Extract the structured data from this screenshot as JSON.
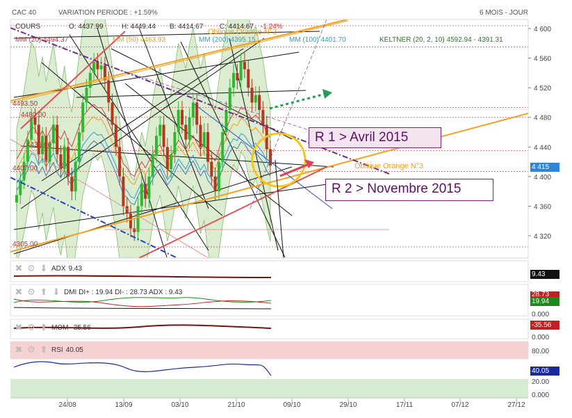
{
  "header": {
    "index": "CAC 40",
    "variation": "VARIATION PERIODE : +1.59%",
    "period": "6 MOIS - JOUR",
    "cours_label": "COURS",
    "open": "O: 4437.99",
    "high": "H: 4449.44",
    "low": "B: 4414.67",
    "close": "C: 4414.67",
    "change": "-1.24%"
  },
  "legend": {
    "mm20": "MM (20) 4494.37",
    "mm50": "MM (50) 4463.93",
    "mm200": "MM (200) 4395.15",
    "mm100": "MM (100) 4401.70",
    "keltner": "KELTNER (20, 2, 10)  4592.94 - 4391.31",
    "oblique2": "Oblique Orange N°2",
    "oblique3": "Oblique Orange N°3"
  },
  "annotations": {
    "r1": "R 1 > Avril 2015",
    "r2": "R 2 > Novembre 2015"
  },
  "price_labels": {
    "l4493": "4493.50",
    "l4480": "4480.00",
    "l4435": "4435.00",
    "l4407": "4407.00",
    "l4305": "4305.00"
  },
  "last_price": "4 415",
  "yaxis_ticks": [
    "4 600",
    "4 560",
    "4 520",
    "4 480",
    "4 440",
    "4 400",
    "4 360",
    "4 320"
  ],
  "xaxis_ticks": [
    "24/08",
    "13/09",
    "03/10",
    "21/10",
    "09/10",
    "29/10",
    "17/11",
    "07/12",
    "27/12"
  ],
  "panels": {
    "adx": {
      "label": "ADX",
      "value": "9.43",
      "box": "9.43"
    },
    "dmi": {
      "label": "DMI DI+ : 19.94 DI- : 28.73 ADX : 9.43",
      "box_red": "28.73",
      "box_green": "19.94",
      "zero": "0.000"
    },
    "mom": {
      "label": "MOM",
      "value": "-35.56",
      "box": "-35.56",
      "zero": "0.000"
    },
    "rsi": {
      "label": "RSI",
      "value": "40.05",
      "box": "40.05",
      "t80": "80.00",
      "t20": "20.00",
      "t0": "0.000"
    }
  },
  "colors": {
    "up": "#2fb82f",
    "down": "#b03a1e",
    "orange": "#f5a020",
    "red_ma": "#e55050",
    "purple": "#6a2a8a",
    "green_arrow": "#2a9a5a",
    "blue_dash": "#2040c0",
    "circle": "#f5c518",
    "keltner_fill": "#cfe6c2"
  },
  "chart_data": {
    "type": "candlestick",
    "title": "CAC 40",
    "subtitle": "6 MOIS - JOUR",
    "ylim": [
      4290,
      4625
    ],
    "x_ticks": [
      "24/08",
      "13/09",
      "03/10",
      "21/10",
      "09/10",
      "29/10",
      "17/11",
      "07/12",
      "27/12"
    ],
    "last_close": 4414.67,
    "ohlc_last": {
      "open": 4437.99,
      "high": 4449.44,
      "low": 4414.67,
      "close": 4414.67
    },
    "close_series": [
      4375,
      4395,
      4420,
      4450,
      4480,
      4470,
      4430,
      4455,
      4420,
      4445,
      4470,
      4430,
      4410,
      4440,
      4400,
      4380,
      4420,
      4460,
      4500,
      4520,
      4540,
      4555,
      4545,
      4550,
      4530,
      4500,
      4470,
      4440,
      4400,
      4360,
      4350,
      4330,
      4325,
      4360,
      4390,
      4370,
      4400,
      4430,
      4455,
      4470,
      4440,
      4410,
      4430,
      4460,
      4490,
      4470,
      4450,
      4480,
      4500,
      4470,
      4440,
      4460,
      4420,
      4400,
      4380,
      4420,
      4460,
      4490,
      4520,
      4540,
      4530,
      4555,
      4545,
      4520,
      4500,
      4510,
      4490,
      4470,
      4437,
      4415
    ],
    "indicators": {
      "MM20": 4494.37,
      "MM50": 4463.93,
      "MM100": 4401.7,
      "MM200": 4395.15,
      "Keltner_upper": 4592.94,
      "Keltner_lower": 4391.31,
      "ADX": 9.43,
      "DI_plus": 19.94,
      "DI_minus": 28.73,
      "MOM": -35.56,
      "RSI": 40.05
    },
    "horizontal_levels": [
      4493.5,
      4480.0,
      4435.0,
      4407.0,
      4305.0
    ],
    "rsi_levels": [
      80,
      20
    ]
  }
}
